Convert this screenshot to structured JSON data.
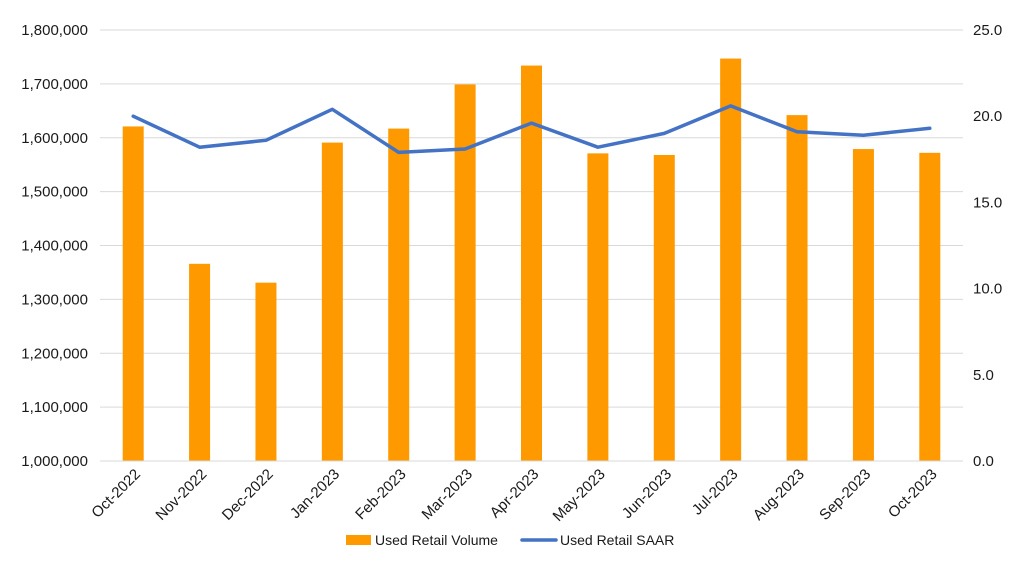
{
  "chart_data": {
    "type": "bar",
    "categories": [
      "Oct-2022",
      "Nov-2022",
      "Dec-2022",
      "Jan-2023",
      "Feb-2023",
      "Mar-2023",
      "Apr-2023",
      "May-2023",
      "Jun-2023",
      "Jul-2023",
      "Aug-2023",
      "Sep-2023",
      "Oct-2023"
    ],
    "series": [
      {
        "name": "Used Retail Volume",
        "type": "bar",
        "axis": "left",
        "color": "#FF9900",
        "values": [
          1621000,
          1366000,
          1331000,
          1591000,
          1617000,
          1699000,
          1734000,
          1571000,
          1568000,
          1747000,
          1642000,
          1579000,
          1572000
        ]
      },
      {
        "name": "Used Retail SAAR",
        "type": "line",
        "axis": "right",
        "color": "#4472C4",
        "values": [
          20.0,
          18.2,
          18.6,
          20.4,
          17.9,
          18.1,
          19.6,
          18.2,
          19.0,
          20.6,
          19.1,
          18.9,
          19.3
        ]
      }
    ],
    "y_left": {
      "min": 1000000,
      "max": 1800000,
      "ticks": [
        "1,000,000",
        "1,100,000",
        "1,200,000",
        "1,300,000",
        "1,400,000",
        "1,500,000",
        "1,600,000",
        "1,700,000",
        "1,800,000"
      ]
    },
    "y_right": {
      "min": 0,
      "max": 25,
      "ticks": [
        "0.0",
        "5.0",
        "10.0",
        "15.0",
        "20.0",
        "25.0"
      ]
    },
    "title": "",
    "xlabel": "",
    "ylabel": "",
    "grid": true,
    "legend": "bottom-center"
  }
}
